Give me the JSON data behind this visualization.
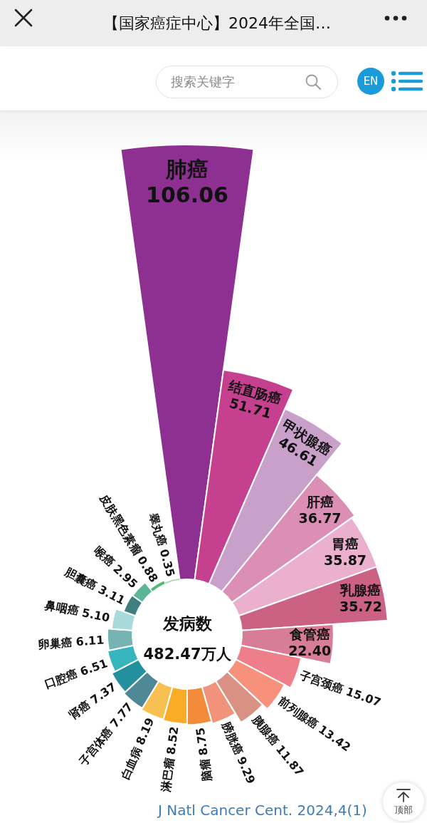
{
  "chart_data": {
    "type": "other",
    "title": "【国家癌症中心】2024年全国…",
    "categories": [
      "肺癌",
      "结直肠癌",
      "甲状腺癌",
      "肝癌",
      "胃癌",
      "乳腺癌",
      "食管癌",
      "子宫颈癌",
      "前列腺癌",
      "胰腺癌",
      "膀胱癌",
      "脑瘤",
      "淋巴瘤",
      "白血病",
      "子宫体癌",
      "肾癌",
      "口腔癌",
      "卵巢癌",
      "鼻咽癌",
      "胆囊癌",
      "喉癌",
      "皮肤黑色素瘤",
      "睾丸癌"
    ],
    "values": [
      106.06,
      51.71,
      46.61,
      36.77,
      35.87,
      35.72,
      22.4,
      15.07,
      13.42,
      11.87,
      9.29,
      8.75,
      8.52,
      8.19,
      7.77,
      7.37,
      6.51,
      6.11,
      5.1,
      3.11,
      2.95,
      0.88,
      0.35
    ],
    "value_labels": [
      "106.06",
      "51.71",
      "46.61",
      "36.77",
      "35.87",
      "35.72",
      "22.40",
      "15.07",
      "13.42",
      "11.87",
      "9.29",
      "8.75",
      "8.52",
      "8.19",
      "7.77",
      "7.37",
      "6.51",
      "6.11",
      "5.10",
      "3.11",
      "2.95",
      "0.88",
      "0.35"
    ],
    "colors": [
      "#8e2f92",
      "#c5408f",
      "#c9a0c9",
      "#dc8fb5",
      "#ecb0cf",
      "#cb6183",
      "#d77d97",
      "#ef7e8b",
      "#f7917c",
      "#d99184",
      "#f0937a",
      "#f38c3a",
      "#fbac27",
      "#f8c050",
      "#4e8796",
      "#23919d",
      "#36b5bf",
      "#76b3b3",
      "#a8dadb",
      "#3e7f80",
      "#5cb598",
      "#52b978",
      "#9ed3a8"
    ],
    "annotations": [
      "发病数",
      "482.47万人",
      "J Natl Cancer Cent. 2024,4(1)",
      "搜索关键字",
      "EN",
      "顶部"
    ]
  }
}
